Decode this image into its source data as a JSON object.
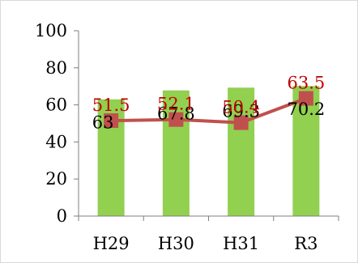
{
  "chart_data": {
    "type": "bar",
    "categories": [
      "H29",
      "H30",
      "H31",
      "R3"
    ],
    "y_ticks": [
      "0",
      "20",
      "40",
      "60",
      "80",
      "100"
    ],
    "ylim": [
      0,
      100
    ],
    "grid": false,
    "legend": "none",
    "series": [
      {
        "type": "bar",
        "values": [
          63,
          67.8,
          69.3,
          70.2
        ],
        "labels": [
          "63",
          "67.8",
          "69.3",
          "70.2"
        ],
        "color": "#92d050"
      },
      {
        "type": "line",
        "marker": "square",
        "values": [
          51.5,
          52.1,
          50.4,
          63.5
        ],
        "labels": [
          "51.5",
          "52.1",
          "50.4",
          "63.5"
        ],
        "color": "#c0504d",
        "label_color": "#c00000"
      }
    ]
  }
}
